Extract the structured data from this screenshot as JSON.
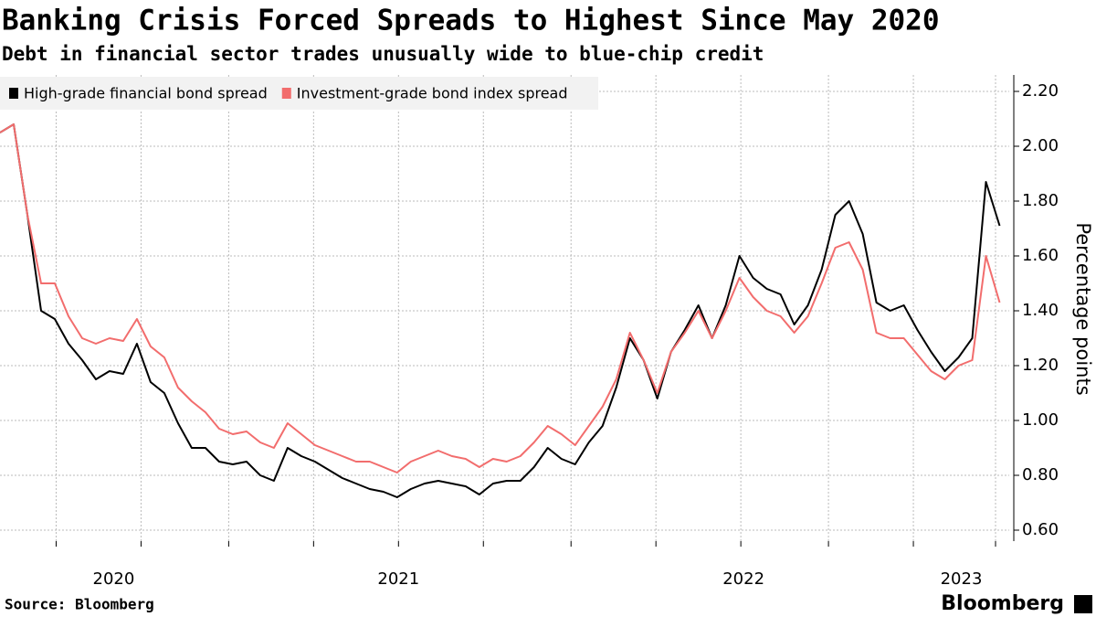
{
  "chart_data": {
    "type": "line",
    "title": "Banking Crisis Forced Spreads to Highest Since May 2020",
    "subtitle": "Debt in financial sector trades unusually wide to blue-chip credit",
    "y_label": "Percentage points",
    "source": "Source: Bloomberg",
    "brand": "Bloomberg",
    "series": [
      {
        "name": "High-grade financial bond spread",
        "color": "#000000",
        "values": [
          2.05,
          2.08,
          1.75,
          1.4,
          1.37,
          1.28,
          1.22,
          1.15,
          1.18,
          1.17,
          1.28,
          1.14,
          1.1,
          0.99,
          0.9,
          0.9,
          0.85,
          0.84,
          0.85,
          0.8,
          0.78,
          0.9,
          0.87,
          0.85,
          0.82,
          0.79,
          0.77,
          0.75,
          0.74,
          0.72,
          0.75,
          0.77,
          0.78,
          0.77,
          0.76,
          0.73,
          0.77,
          0.78,
          0.78,
          0.83,
          0.9,
          0.86,
          0.84,
          0.92,
          0.98,
          1.12,
          1.3,
          1.22,
          1.08,
          1.25,
          1.33,
          1.42,
          1.3,
          1.42,
          1.6,
          1.52,
          1.48,
          1.46,
          1.35,
          1.42,
          1.55,
          1.75,
          1.8,
          1.68,
          1.43,
          1.4,
          1.42,
          1.33,
          1.25,
          1.18,
          1.23,
          1.3,
          1.87,
          1.71
        ]
      },
      {
        "name": "Investment-grade bond index spread",
        "color": "#f26d6d",
        "values": [
          2.05,
          2.08,
          1.75,
          1.5,
          1.5,
          1.38,
          1.3,
          1.28,
          1.3,
          1.29,
          1.37,
          1.27,
          1.23,
          1.12,
          1.07,
          1.03,
          0.97,
          0.95,
          0.96,
          0.92,
          0.9,
          0.99,
          0.95,
          0.91,
          0.89,
          0.87,
          0.85,
          0.85,
          0.83,
          0.81,
          0.85,
          0.87,
          0.89,
          0.87,
          0.86,
          0.83,
          0.86,
          0.85,
          0.87,
          0.92,
          0.98,
          0.95,
          0.91,
          0.98,
          1.05,
          1.15,
          1.32,
          1.22,
          1.1,
          1.25,
          1.32,
          1.4,
          1.3,
          1.4,
          1.52,
          1.45,
          1.4,
          1.38,
          1.32,
          1.38,
          1.5,
          1.63,
          1.65,
          1.55,
          1.32,
          1.3,
          1.3,
          1.24,
          1.18,
          1.15,
          1.2,
          1.22,
          1.6,
          1.43
        ]
      }
    ],
    "xlim": [
      0,
      73.7
    ],
    "xticks": [
      4.1,
      10.3,
      16.7,
      22.9,
      29.1,
      35.3,
      41.7,
      47.9,
      54.1,
      60.5,
      66.7,
      72.7
    ],
    "xlabels": [
      {
        "value": 8.3,
        "label": "2020"
      },
      {
        "value": 29.1,
        "label": "2021"
      },
      {
        "value": 54.3,
        "label": "2022"
      },
      {
        "value": 70.2,
        "label": "2023"
      }
    ],
    "ylim": [
      0.56,
      2.26
    ],
    "yticks": [
      {
        "value": 0.6,
        "label": "0.60"
      },
      {
        "value": 0.8,
        "label": "0.80"
      },
      {
        "value": 1.0,
        "label": "1.00"
      },
      {
        "value": 1.2,
        "label": "1.20"
      },
      {
        "value": 1.4,
        "label": "1.40"
      },
      {
        "value": 1.6,
        "label": "1.60"
      },
      {
        "value": 1.8,
        "label": "1.80"
      },
      {
        "value": 2.0,
        "label": "2.00"
      },
      {
        "value": 2.2,
        "label": "2.20"
      }
    ],
    "grid": true,
    "legend": "top-left",
    "y_axis_side": "right"
  }
}
